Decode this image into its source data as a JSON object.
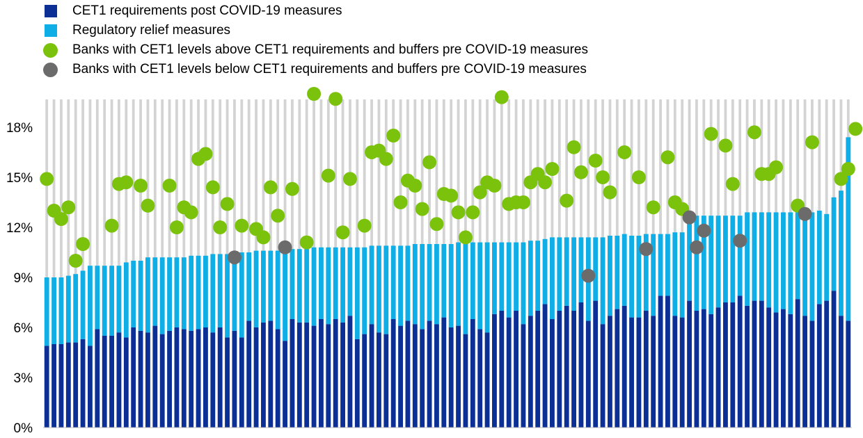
{
  "colors": {
    "requirements": "#0c2f96",
    "relief": "#10aee6",
    "above": "#7ac20c",
    "below": "#6b6b6b",
    "grid": "#d3d3d3"
  },
  "chart_data": {
    "type": "bar",
    "stacked": true,
    "title": "",
    "xlabel": "",
    "ylabel": "",
    "ylim": [
      0,
      20
    ],
    "yticks": [
      0,
      3,
      6,
      9,
      12,
      15,
      18
    ],
    "ytick_labels": [
      "0%",
      "3%",
      "6%",
      "9%",
      "12%",
      "15%",
      "18%"
    ],
    "grid": "vertical lines behind bars, no horizontal gridlines",
    "legend_position": "top-left",
    "series": [
      {
        "name": "CET1 requirements post COVID-19 measures",
        "type": "bar",
        "values": [
          4.9,
          5.0,
          5.0,
          5.1,
          5.1,
          5.3,
          4.9,
          5.9,
          5.5,
          5.5,
          5.7,
          5.4,
          6.0,
          5.8,
          5.7,
          6.1,
          5.6,
          5.8,
          6.0,
          5.9,
          5.8,
          5.9,
          6.0,
          5.7,
          6.0,
          5.4,
          5.8,
          5.4,
          6.4,
          6.0,
          6.3,
          6.4,
          5.9,
          5.2,
          6.5,
          6.3,
          6.3,
          6.1,
          6.5,
          6.2,
          6.5,
          6.3,
          6.7,
          5.3,
          5.6,
          6.2,
          5.7,
          5.6,
          6.5,
          6.1,
          6.4,
          6.2,
          5.9,
          6.4,
          6.2,
          6.6,
          6.0,
          6.1,
          5.6,
          6.5,
          5.9,
          5.7,
          6.8,
          7.0,
          6.6,
          7.0,
          6.2,
          6.7,
          7.0,
          7.4,
          6.5,
          7.0,
          7.3,
          7.0,
          7.5,
          6.4,
          7.6,
          6.2,
          6.7,
          7.1,
          7.3,
          6.6,
          6.6,
          7.0,
          6.7,
          7.9,
          7.9,
          6.7,
          6.6,
          7.6,
          7.0,
          7.1,
          6.8,
          7.2,
          7.5,
          7.5,
          7.9,
          7.3,
          7.6,
          7.6,
          7.2,
          6.9,
          7.1,
          6.8,
          7.7,
          6.7,
          6.4,
          7.4,
          7.6,
          8.2,
          6.7,
          6.4
        ]
      },
      {
        "name": "Regulatory relief measures",
        "type": "bar",
        "values": [
          4.1,
          4.0,
          4.0,
          4.0,
          4.1,
          4.1,
          4.8,
          3.8,
          4.2,
          4.2,
          4.0,
          4.5,
          4.0,
          4.2,
          4.5,
          4.1,
          4.6,
          4.4,
          4.2,
          4.3,
          4.5,
          4.4,
          4.3,
          4.7,
          4.4,
          5.0,
          4.6,
          5.1,
          4.1,
          4.6,
          4.3,
          4.2,
          4.7,
          5.4,
          4.2,
          4.4,
          4.4,
          4.7,
          4.3,
          4.6,
          4.3,
          4.5,
          4.1,
          5.5,
          5.2,
          4.7,
          5.2,
          5.3,
          4.4,
          4.8,
          4.5,
          4.8,
          5.1,
          4.6,
          4.8,
          4.4,
          5.0,
          5.0,
          5.5,
          4.6,
          5.2,
          5.4,
          4.3,
          4.1,
          4.5,
          4.1,
          4.9,
          4.5,
          4.2,
          3.9,
          4.9,
          4.4,
          4.1,
          4.4,
          3.9,
          5.0,
          3.8,
          5.2,
          4.8,
          4.4,
          4.3,
          4.9,
          4.9,
          4.6,
          4.9,
          3.7,
          3.7,
          5.0,
          5.1,
          5.1,
          5.7,
          5.6,
          5.9,
          5.5,
          5.2,
          5.2,
          4.8,
          5.6,
          5.3,
          5.3,
          5.7,
          6.0,
          5.8,
          6.1,
          5.2,
          6.2,
          6.5,
          5.6,
          5.2,
          5.6,
          7.5,
          11.0
        ]
      },
      {
        "name": "Banks with CET1 levels above CET1 requirements and buffers pre COVID-19 measures",
        "type": "scatter",
        "points": [
          {
            "bank": 1,
            "value": 14.9
          },
          {
            "bank": 2,
            "value": 13.0
          },
          {
            "bank": 3,
            "value": 12.5
          },
          {
            "bank": 4,
            "value": 13.2
          },
          {
            "bank": 5,
            "value": 10.0
          },
          {
            "bank": 6,
            "value": 11.0
          },
          {
            "bank": 10,
            "value": 12.1
          },
          {
            "bank": 11,
            "value": 14.6
          },
          {
            "bank": 12,
            "value": 14.7
          },
          {
            "bank": 14,
            "value": 14.5
          },
          {
            "bank": 15,
            "value": 13.3
          },
          {
            "bank": 18,
            "value": 14.5
          },
          {
            "bank": 19,
            "value": 12.0
          },
          {
            "bank": 20,
            "value": 13.2
          },
          {
            "bank": 21,
            "value": 12.9
          },
          {
            "bank": 22,
            "value": 16.1
          },
          {
            "bank": 23,
            "value": 16.4
          },
          {
            "bank": 24,
            "value": 14.4
          },
          {
            "bank": 25,
            "value": 12.0
          },
          {
            "bank": 26,
            "value": 13.4
          },
          {
            "bank": 28,
            "value": 12.1
          },
          {
            "bank": 30,
            "value": 11.9
          },
          {
            "bank": 31,
            "value": 11.4
          },
          {
            "bank": 32,
            "value": 14.4
          },
          {
            "bank": 33,
            "value": 12.7
          },
          {
            "bank": 35,
            "value": 14.3
          },
          {
            "bank": 37,
            "value": 11.1
          },
          {
            "bank": 38,
            "value": 20.0
          },
          {
            "bank": 40,
            "value": 15.1
          },
          {
            "bank": 41,
            "value": 19.7
          },
          {
            "bank": 42,
            "value": 11.7
          },
          {
            "bank": 43,
            "value": 14.9
          },
          {
            "bank": 45,
            "value": 12.1
          },
          {
            "bank": 46,
            "value": 16.5
          },
          {
            "bank": 47,
            "value": 16.6
          },
          {
            "bank": 48,
            "value": 16.1
          },
          {
            "bank": 49,
            "value": 17.5
          },
          {
            "bank": 50,
            "value": 13.5
          },
          {
            "bank": 51,
            "value": 14.8
          },
          {
            "bank": 52,
            "value": 14.5
          },
          {
            "bank": 53,
            "value": 13.1
          },
          {
            "bank": 54,
            "value": 15.9
          },
          {
            "bank": 55,
            "value": 12.2
          },
          {
            "bank": 56,
            "value": 14.0
          },
          {
            "bank": 57,
            "value": 13.9
          },
          {
            "bank": 58,
            "value": 12.9
          },
          {
            "bank": 59,
            "value": 11.4
          },
          {
            "bank": 60,
            "value": 12.9
          },
          {
            "bank": 61,
            "value": 14.1
          },
          {
            "bank": 62,
            "value": 14.7
          },
          {
            "bank": 63,
            "value": 14.5
          },
          {
            "bank": 64,
            "value": 19.8
          },
          {
            "bank": 65,
            "value": 13.4
          },
          {
            "bank": 66,
            "value": 13.5
          },
          {
            "bank": 67,
            "value": 13.5
          },
          {
            "bank": 68,
            "value": 14.7
          },
          {
            "bank": 69,
            "value": 15.2
          },
          {
            "bank": 70,
            "value": 14.7
          },
          {
            "bank": 71,
            "value": 15.5
          },
          {
            "bank": 73,
            "value": 13.6
          },
          {
            "bank": 74,
            "value": 16.8
          },
          {
            "bank": 75,
            "value": 15.3
          },
          {
            "bank": 77,
            "value": 16.0
          },
          {
            "bank": 78,
            "value": 15.0
          },
          {
            "bank": 79,
            "value": 14.1
          },
          {
            "bank": 81,
            "value": 16.5
          },
          {
            "bank": 83,
            "value": 15.0
          },
          {
            "bank": 85,
            "value": 13.2
          },
          {
            "bank": 87,
            "value": 16.2
          },
          {
            "bank": 88,
            "value": 13.5
          },
          {
            "bank": 89,
            "value": 13.1
          },
          {
            "bank": 93,
            "value": 17.6
          },
          {
            "bank": 95,
            "value": 16.9
          },
          {
            "bank": 96,
            "value": 14.6
          },
          {
            "bank": 99,
            "value": 17.7
          },
          {
            "bank": 100,
            "value": 15.2
          },
          {
            "bank": 101,
            "value": 15.2
          },
          {
            "bank": 102,
            "value": 15.6
          },
          {
            "bank": 105,
            "value": 13.3
          },
          {
            "bank": 107,
            "value": 17.1
          },
          {
            "bank": 111,
            "value": 14.9
          },
          {
            "bank": 112,
            "value": 15.5
          },
          {
            "bank": 113,
            "value": 17.9
          }
        ]
      },
      {
        "name": "Banks with CET1 levels below CET1 requirements and buffers pre COVID-19 measures",
        "type": "scatter",
        "points": [
          {
            "bank": 27,
            "value": 10.2
          },
          {
            "bank": 34,
            "value": 10.8
          },
          {
            "bank": 76,
            "value": 9.1
          },
          {
            "bank": 84,
            "value": 10.7
          },
          {
            "bank": 90,
            "value": 12.6
          },
          {
            "bank": 91,
            "value": 10.8
          },
          {
            "bank": 92,
            "value": 11.8
          },
          {
            "bank": 97,
            "value": 11.2
          },
          {
            "bank": 106,
            "value": 12.8
          }
        ]
      }
    ]
  }
}
